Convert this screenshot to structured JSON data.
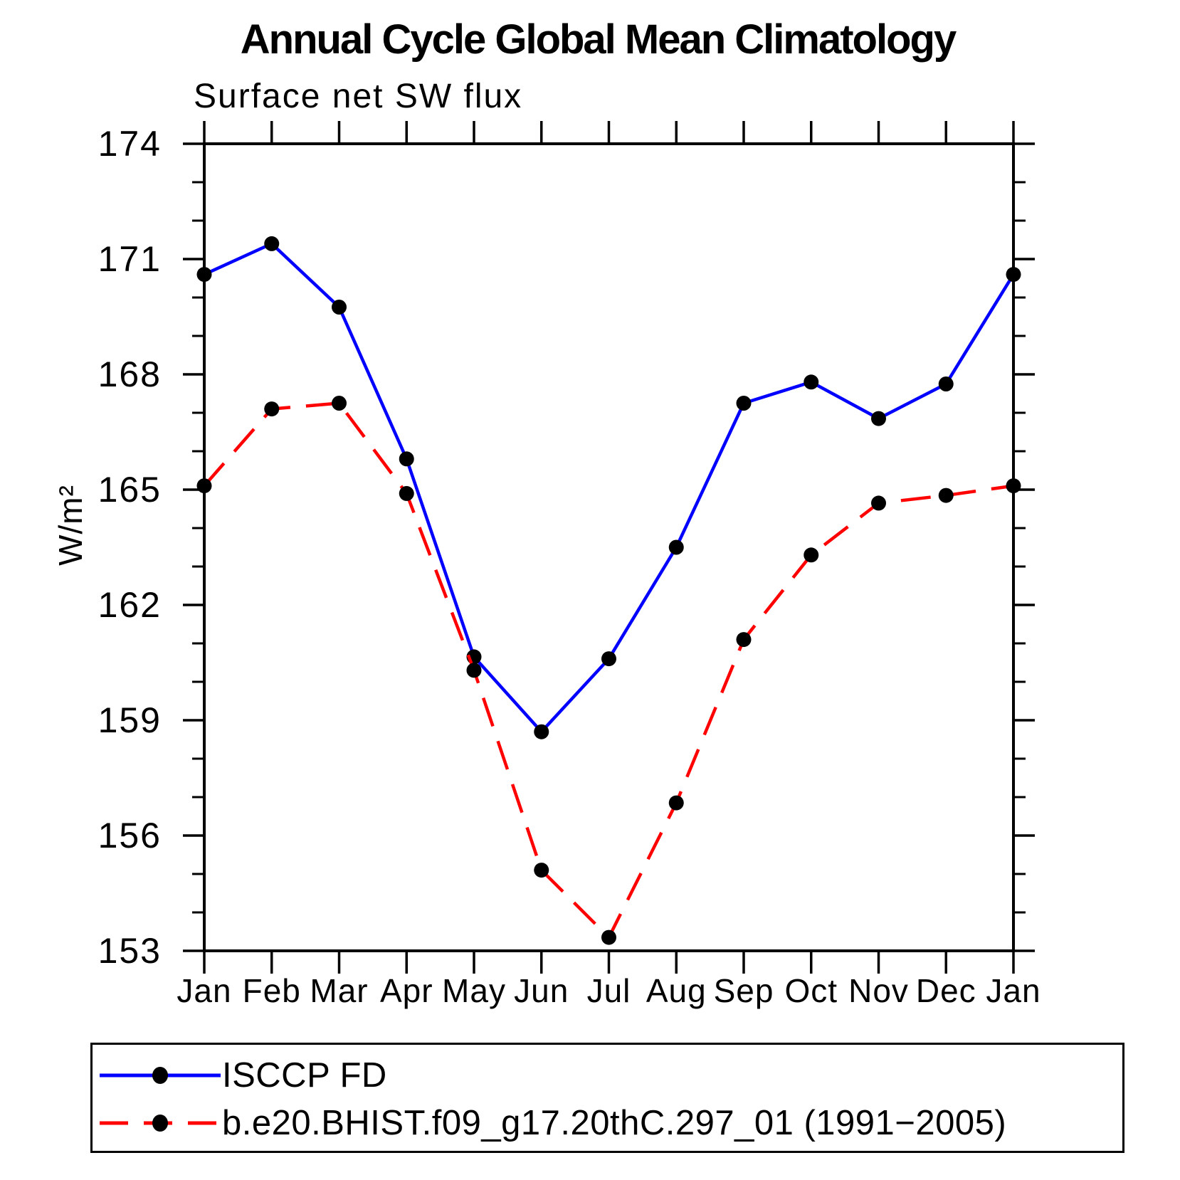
{
  "page": {
    "title": "Annual Cycle Global Mean Climatology",
    "subtitle": "Surface net SW flux",
    "y_axis_label": "W/m²"
  },
  "chart_data": {
    "type": "line",
    "title": "Annual Cycle Global Mean Climatology",
    "subtitle": "Surface net SW flux",
    "xlabel": "",
    "ylabel": "W/m²",
    "x_categories": [
      "Jan",
      "Feb",
      "Mar",
      "Apr",
      "May",
      "Jun",
      "Jul",
      "Aug",
      "Sep",
      "Oct",
      "Nov",
      "Dec",
      "Jan"
    ],
    "ylim": [
      153,
      174
    ],
    "y_major_ticks": [
      153,
      156,
      159,
      162,
      165,
      168,
      171,
      174
    ],
    "y_minor_tick_step": 1,
    "grid": false,
    "legend_position": "bottom",
    "series": [
      {
        "name": "ISCCP FD",
        "color": "#0000ff",
        "line_style": "solid",
        "marker": "circle",
        "marker_color": "#000000",
        "values": [
          170.6,
          171.4,
          169.75,
          165.8,
          160.65,
          158.7,
          160.6,
          163.5,
          167.25,
          167.8,
          166.85,
          167.75,
          170.6
        ]
      },
      {
        "name": "b.e20.BHIST.f09_g17.20thC.297_01 (1991−2005)",
        "color": "#ff0000",
        "line_style": "dashed",
        "marker": "circle",
        "marker_color": "#000000",
        "values": [
          165.1,
          167.1,
          167.25,
          164.9,
          160.3,
          155.1,
          153.35,
          156.85,
          161.1,
          163.3,
          164.65,
          164.85,
          165.1
        ]
      }
    ]
  }
}
